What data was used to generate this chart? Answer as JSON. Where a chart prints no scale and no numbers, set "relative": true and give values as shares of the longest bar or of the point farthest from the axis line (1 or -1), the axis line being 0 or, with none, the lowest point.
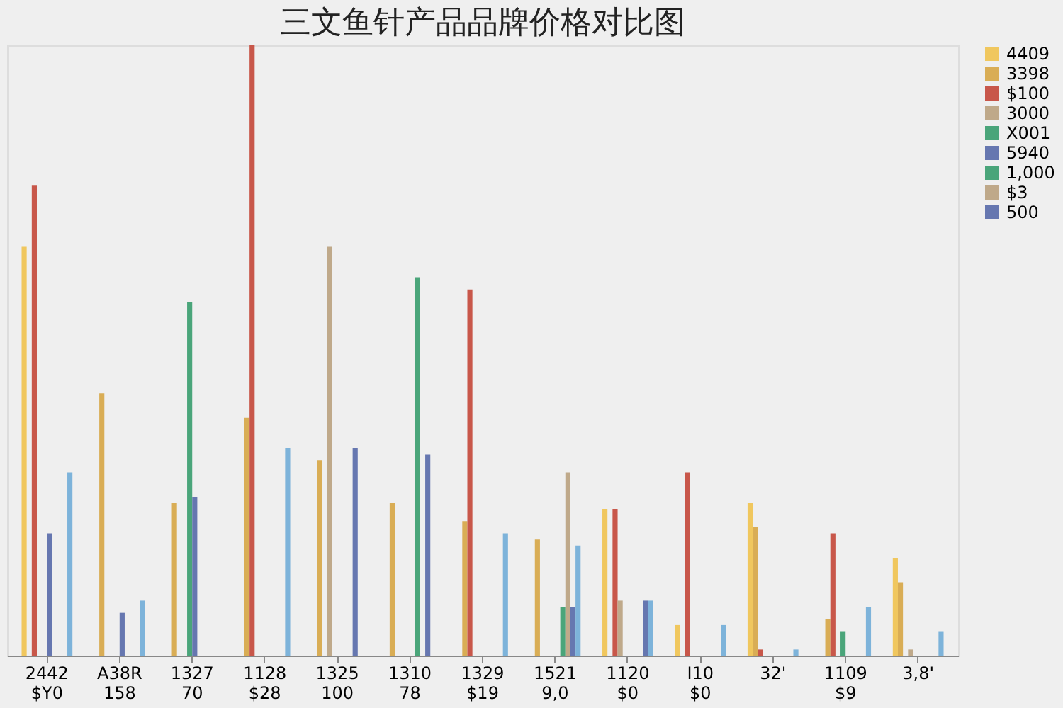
{
  "chart_data": {
    "type": "bar",
    "title": "三文鱼针产品品牌价格对比图",
    "relative": true,
    "legend": "top right",
    "categories": [
      "2442\n$Y0",
      "A38R\n158",
      "1327\n70",
      "1128\n$28",
      "1325\n100",
      "1310\n78",
      "1329\n$19",
      "1521\n9,0",
      "1120\n$0",
      "I10\n$0",
      "32'",
      "1109\n$9",
      "3,8'"
    ],
    "series": [
      {
        "name": "4409",
        "color": "#f0c75e",
        "values": [
          0.67,
          null,
          null,
          null,
          null,
          null,
          null,
          null,
          0.24,
          0.05,
          0.25,
          null,
          0.16
        ]
      },
      {
        "name": "3398",
        "color": "#d9ad55",
        "values": [
          null,
          0.43,
          0.25,
          0.39,
          0.32,
          0.25,
          0.22,
          0.19,
          null,
          null,
          0.21,
          0.06,
          0.12
        ]
      },
      {
        "name": "$100",
        "color": "#c8574a",
        "values": [
          0.77,
          null,
          null,
          1,
          null,
          null,
          0.6,
          null,
          0.24,
          0.3,
          0.01,
          0.2,
          null
        ]
      },
      {
        "name": "3000",
        "color": "#bfa98a",
        "values": [
          null,
          null,
          null,
          null,
          0.67,
          null,
          null,
          null,
          0.09,
          null,
          null,
          null,
          0.01
        ]
      },
      {
        "name": "X001",
        "color": "#4aa57a",
        "values": [
          null,
          null,
          0.58,
          null,
          null,
          null,
          null,
          null,
          null,
          null,
          null,
          0.04,
          null
        ]
      },
      {
        "name": "5940",
        "color": "#6677b0",
        "values": [
          0.2,
          0.07,
          0.26,
          null,
          null,
          null,
          null,
          null,
          null,
          null,
          null,
          null,
          null
        ]
      },
      {
        "name": "1,000",
        "color": "#4aa57a",
        "values": [
          null,
          null,
          null,
          null,
          null,
          0.62,
          null,
          0.08,
          null,
          null,
          null,
          null,
          null
        ]
      },
      {
        "name": "$3",
        "color": "#bfa98a",
        "values": [
          null,
          null,
          null,
          null,
          null,
          null,
          null,
          0.3,
          null,
          null,
          null,
          null,
          null
        ]
      },
      {
        "name": "500",
        "color": "#6677b0",
        "values": [
          null,
          null,
          null,
          null,
          0.34,
          0.33,
          null,
          0.08,
          0.09,
          null,
          null,
          null,
          null
        ]
      },
      {
        "color": "#7db3da",
        "values": [
          0.3,
          0.09,
          null,
          0.34,
          null,
          null,
          0.2,
          0.18,
          0.09,
          0.05,
          0.01,
          0.08,
          0.04
        ]
      }
    ]
  }
}
